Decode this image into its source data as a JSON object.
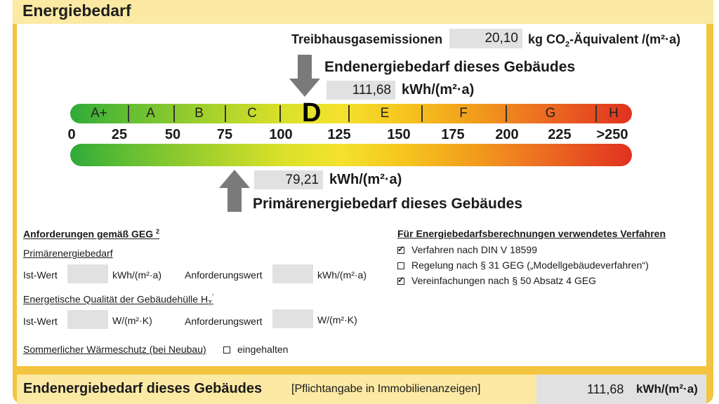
{
  "title": "Energiebedarf",
  "emissions": {
    "label": "Treibhausgasemissionen",
    "value": "20,10",
    "unit_prefix": "kg CO",
    "unit_sub": "2",
    "unit_suffix": "-Äquivalent /(m²·a)"
  },
  "end_energy": {
    "label": "Endenergiebedarf dieses Gebäudes",
    "value": "111,68",
    "unit": "kWh/(m²·a)",
    "class_marker": "D"
  },
  "primary_energy": {
    "label": "Primärenergiebedarf dieses Gebäudes",
    "value": "79,21",
    "unit": "kWh/(m²·a)"
  },
  "scale": {
    "classes": [
      "A+",
      "A",
      "B",
      "C",
      "D",
      "E",
      "F",
      "G",
      "H"
    ],
    "ticks": [
      "0",
      "25",
      "50",
      "75",
      "100",
      "125",
      "150",
      "175",
      "200",
      "225",
      ">250"
    ]
  },
  "requirements": {
    "heading": "Anforderungen gemäß GEG",
    "heading_sup": "2",
    "primary_heading": "Primärenergiebedarf",
    "ist_wert": "Ist-Wert",
    "anforderungswert": "Anforderungswert",
    "unit_kwh": "kWh/(m²·a)",
    "envelope_heading": "Energetische Qualität der Gebäudehülle H",
    "envelope_sub": "T",
    "envelope_sup": "'",
    "unit_w": "W/(m²·K)",
    "summer_label": "Sommerlicher Wärmeschutz (bei Neubau)",
    "summer_option": "eingehalten",
    "summer_checked": false
  },
  "methods": {
    "heading": "Für Energiebedarfsberechnungen verwendetes Verfahren",
    "items": [
      {
        "label": "Verfahren nach DIN V 18599",
        "checked": true
      },
      {
        "label": "Regelung nach § 31 GEG („Modellgebäudeverfahren“)",
        "checked": false
      },
      {
        "label": "Vereinfachungen nach § 50 Absatz 4 GEG",
        "checked": true
      }
    ]
  },
  "footer": {
    "label": "Endenergiebedarf dieses Gebäudes",
    "note": "[Pflichtangabe in Immobilienanzeigen]",
    "value": "111,68",
    "unit": "kWh/(m²·a)"
  }
}
